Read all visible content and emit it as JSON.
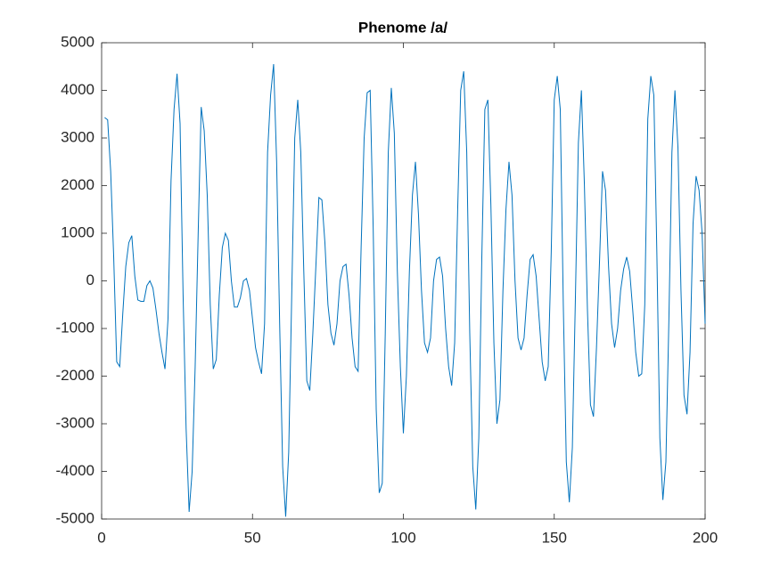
{
  "chart_data": {
    "type": "line",
    "title": "Phenome /a/",
    "x": [
      1,
      2,
      3,
      4,
      5,
      6,
      7,
      8,
      9,
      10,
      11,
      12,
      13,
      14,
      15,
      16,
      17,
      18,
      19,
      20,
      21,
      22,
      23,
      24,
      25,
      26,
      27,
      28,
      29,
      30,
      31,
      32,
      33,
      34,
      35,
      36,
      37,
      38,
      39,
      40,
      41,
      42,
      43,
      44,
      45,
      46,
      47,
      48,
      49,
      50,
      51,
      52,
      53,
      54,
      55,
      56,
      57,
      58,
      59,
      60,
      61,
      62,
      63,
      64,
      65,
      66,
      67,
      68,
      69,
      70,
      71,
      72,
      73,
      74,
      75,
      76,
      77,
      78,
      79,
      80,
      81,
      82,
      83,
      84,
      85,
      86,
      87,
      88,
      89,
      90,
      91,
      92,
      93,
      94,
      95,
      96,
      97,
      98,
      99,
      100,
      101,
      102,
      103,
      104,
      105,
      106,
      107,
      108,
      109,
      110,
      111,
      112,
      113,
      114,
      115,
      116,
      117,
      118,
      119,
      120,
      121,
      122,
      123,
      124,
      125,
      126,
      127,
      128,
      129,
      130,
      131,
      132,
      133,
      134,
      135,
      136,
      137,
      138,
      139,
      140,
      141,
      142,
      143,
      144,
      145,
      146,
      147,
      148,
      149,
      150,
      151,
      152,
      153,
      154,
      155,
      156,
      157,
      158,
      159,
      160,
      161,
      162,
      163,
      164,
      165,
      166,
      167,
      168,
      169,
      170,
      171,
      172,
      173,
      174,
      175,
      176,
      177,
      178,
      179,
      180,
      181,
      182,
      183,
      184,
      185,
      186,
      187,
      188,
      189,
      190,
      191,
      192,
      193,
      194,
      195,
      196,
      197,
      198,
      199,
      200
    ],
    "series": [
      {
        "color": "#0072bd",
        "values": [
          3430,
          3380,
          2300,
          500,
          -1700,
          -1800,
          -700,
          300,
          800,
          950,
          100,
          -400,
          -430,
          -430,
          -100,
          0,
          -150,
          -600,
          -1100,
          -1500,
          -1850,
          -800,
          2100,
          3600,
          4350,
          3300,
          -300,
          -3100,
          -4850,
          -4000,
          -1800,
          1000,
          3650,
          3150,
          1800,
          -500,
          -1850,
          -1650,
          -300,
          700,
          1000,
          850,
          0,
          -550,
          -550,
          -350,
          0,
          50,
          -200,
          -800,
          -1400,
          -1700,
          -1950,
          -900,
          2700,
          3900,
          4550,
          2500,
          -900,
          -3900,
          -4950,
          -3600,
          -300,
          3000,
          3800,
          2700,
          200,
          -2100,
          -2300,
          -1100,
          300,
          1750,
          1700,
          800,
          -500,
          -1100,
          -1350,
          -900,
          0,
          300,
          350,
          -300,
          -1200,
          -1800,
          -1900,
          700,
          3000,
          3950,
          4000,
          1100,
          -2700,
          -4450,
          -4250,
          -1100,
          2700,
          4050,
          3100,
          200,
          -1800,
          -3200,
          -2000,
          200,
          1800,
          2500,
          1400,
          -200,
          -1300,
          -1500,
          -1200,
          0,
          450,
          500,
          100,
          -1000,
          -1800,
          -2200,
          -1300,
          1500,
          4000,
          4400,
          2700,
          -1100,
          -3900,
          -4800,
          -3300,
          500,
          3600,
          3800,
          1600,
          -1300,
          -3000,
          -2500,
          -200,
          1500,
          2500,
          1800,
          0,
          -1200,
          -1450,
          -1200,
          -300,
          450,
          550,
          100,
          -800,
          -1700,
          -2100,
          -1800,
          600,
          3800,
          4300,
          3600,
          -500,
          -3800,
          -4650,
          -3500,
          -400,
          2900,
          4000,
          2000,
          -600,
          -2600,
          -2850,
          -1400,
          400,
          2300,
          1900,
          300,
          -900,
          -1400,
          -1000,
          -200,
          250,
          500,
          200,
          -600,
          -1500,
          -2000,
          -1950,
          -500,
          3400,
          4300,
          3900,
          600,
          -3300,
          -4600,
          -3800,
          -800,
          2700,
          4000,
          2800,
          -200,
          -2400,
          -2800,
          -1500,
          1200,
          2200,
          1900,
          1000,
          -900
        ]
      }
    ],
    "xlim": [
      0,
      200
    ],
    "xticks": [
      0,
      50,
      100,
      150,
      200
    ],
    "ylim": [
      -5000,
      5000
    ],
    "yticks": [
      -5000,
      -4000,
      -3000,
      -2000,
      -1000,
      0,
      1000,
      2000,
      3000,
      4000,
      5000
    ]
  }
}
